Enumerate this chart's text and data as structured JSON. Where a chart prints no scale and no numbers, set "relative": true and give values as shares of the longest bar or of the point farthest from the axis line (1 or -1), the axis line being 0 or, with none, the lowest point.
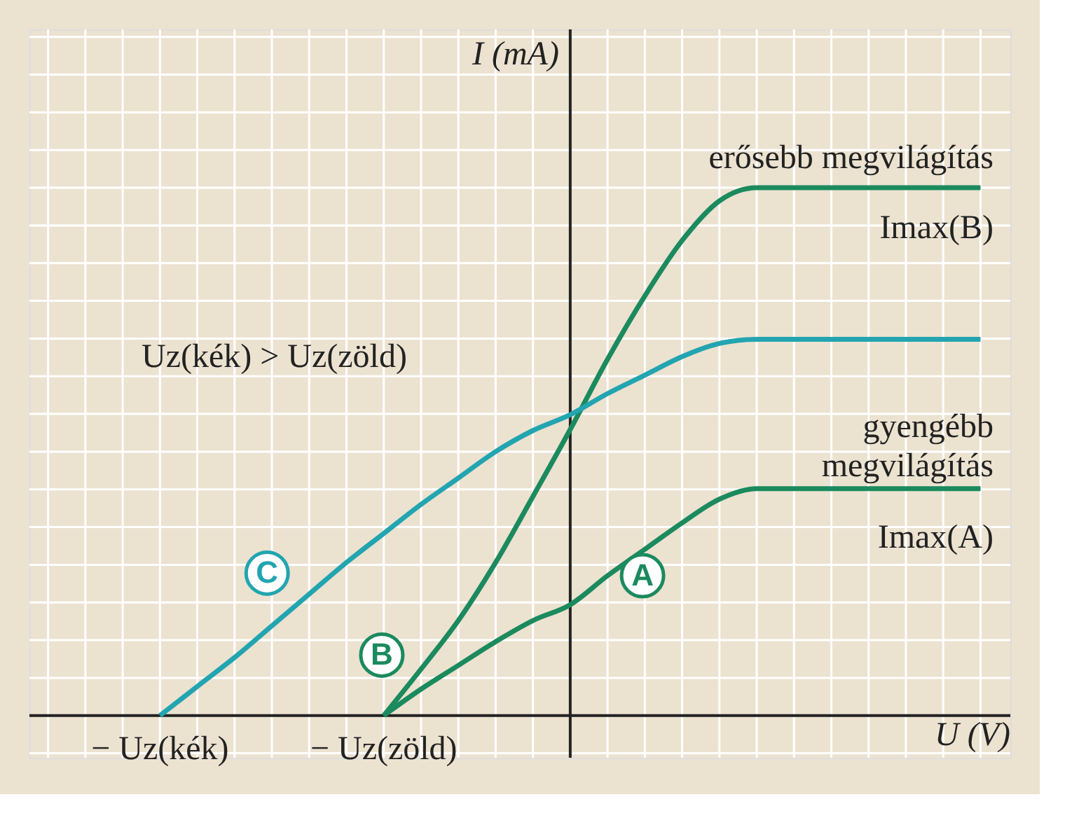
{
  "chart_data": {
    "type": "line",
    "relative": true,
    "xlabel": "U (V)",
    "ylabel": "I (mA)",
    "categories": [
      null,
      null,
      null,
      "− Uz(kék)",
      null,
      null,
      null,
      null,
      null,
      "− Uz(zöld)",
      null,
      null,
      null,
      null,
      null,
      null,
      null,
      null,
      null,
      null,
      null,
      null,
      null,
      null,
      null,
      null
    ],
    "grid": true,
    "marker": "none",
    "line_style": "solid",
    "series": [
      {
        "name": "A",
        "color": "#1b8a5e",
        "values": [
          null,
          null,
          null,
          null,
          null,
          null,
          null,
          null,
          null,
          0,
          0.05,
          0.095,
          0.14,
          0.18,
          0.21,
          0.265,
          0.315,
          0.365,
          0.41,
          0.43,
          0.43,
          0.43,
          0.43,
          0.43,
          0.43,
          0.43
        ]
      },
      {
        "name": "B",
        "color": "#1b8a5e",
        "values": [
          null,
          null,
          null,
          null,
          null,
          null,
          null,
          null,
          null,
          0,
          0.088,
          0.18,
          0.29,
          0.415,
          0.542,
          0.675,
          0.795,
          0.9,
          0.975,
          1,
          1,
          1,
          1,
          1,
          1,
          1
        ]
      },
      {
        "name": "C",
        "color": "#22a5b0",
        "values": [
          null,
          null,
          null,
          0,
          0.055,
          0.11,
          0.17,
          0.23,
          0.29,
          0.345,
          0.4,
          0.45,
          0.5,
          0.54,
          0.57,
          0.61,
          0.645,
          0.68,
          0.705,
          0.713,
          0.713,
          0.713,
          0.713,
          0.713,
          0.713,
          0.713
        ]
      }
    ],
    "annotations": [
      "erősebb megvilágítás",
      "Imax(B)",
      "gyengébb megvilágítás",
      "Imax(A)",
      "Uz(kék) > Uz(zöld)"
    ]
  }
}
